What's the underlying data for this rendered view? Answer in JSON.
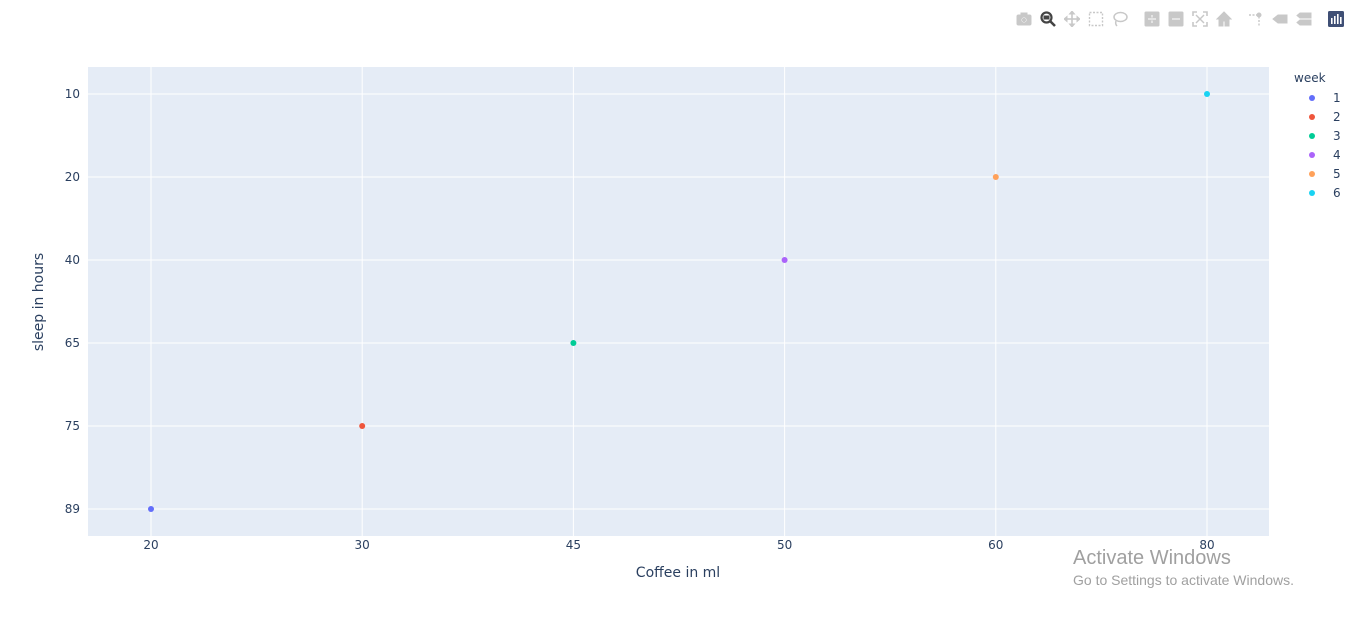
{
  "modebar": {
    "buttons": [
      {
        "name": "camera-icon"
      },
      {
        "name": "zoom-icon"
      },
      {
        "name": "pan-icon"
      },
      {
        "name": "box-select-icon"
      },
      {
        "name": "lasso-select-icon"
      },
      {
        "name": "zoom-in-icon"
      },
      {
        "name": "zoom-out-icon"
      },
      {
        "name": "autoscale-icon"
      },
      {
        "name": "reset-axes-icon"
      },
      {
        "name": "spike-lines-icon"
      },
      {
        "name": "hover-closest-icon"
      },
      {
        "name": "hover-compare-icon"
      },
      {
        "name": "plotly-logo-icon"
      }
    ],
    "active_color": "#444444",
    "inactive_color": "#c8c8c8"
  },
  "chart_data": {
    "type": "scatter",
    "title": "",
    "xlabel": "Coffee in ml",
    "ylabel": "sleep in hours",
    "x_categories": [
      "20",
      "30",
      "45",
      "50",
      "60",
      "80"
    ],
    "y_categories": [
      "89",
      "75",
      "65",
      "40",
      "20",
      "10"
    ],
    "legend_title": "week",
    "legend_placement": "top-right",
    "grid": true,
    "plot_bgcolor": "#e5ecf6",
    "series": [
      {
        "name": "1",
        "x": "20",
        "y": "89",
        "color": "#636efa"
      },
      {
        "name": "2",
        "x": "30",
        "y": "75",
        "color": "#ef553b"
      },
      {
        "name": "3",
        "x": "45",
        "y": "65",
        "color": "#00cc96"
      },
      {
        "name": "4",
        "x": "50",
        "y": "40",
        "color": "#ab63fa"
      },
      {
        "name": "5",
        "x": "60",
        "y": "20",
        "color": "#ffa15a"
      },
      {
        "name": "6",
        "x": "80",
        "y": "10",
        "color": "#19d3f3"
      }
    ]
  },
  "watermark": {
    "line1": "Activate Windows",
    "line2": "Go to Settings to activate Windows."
  }
}
